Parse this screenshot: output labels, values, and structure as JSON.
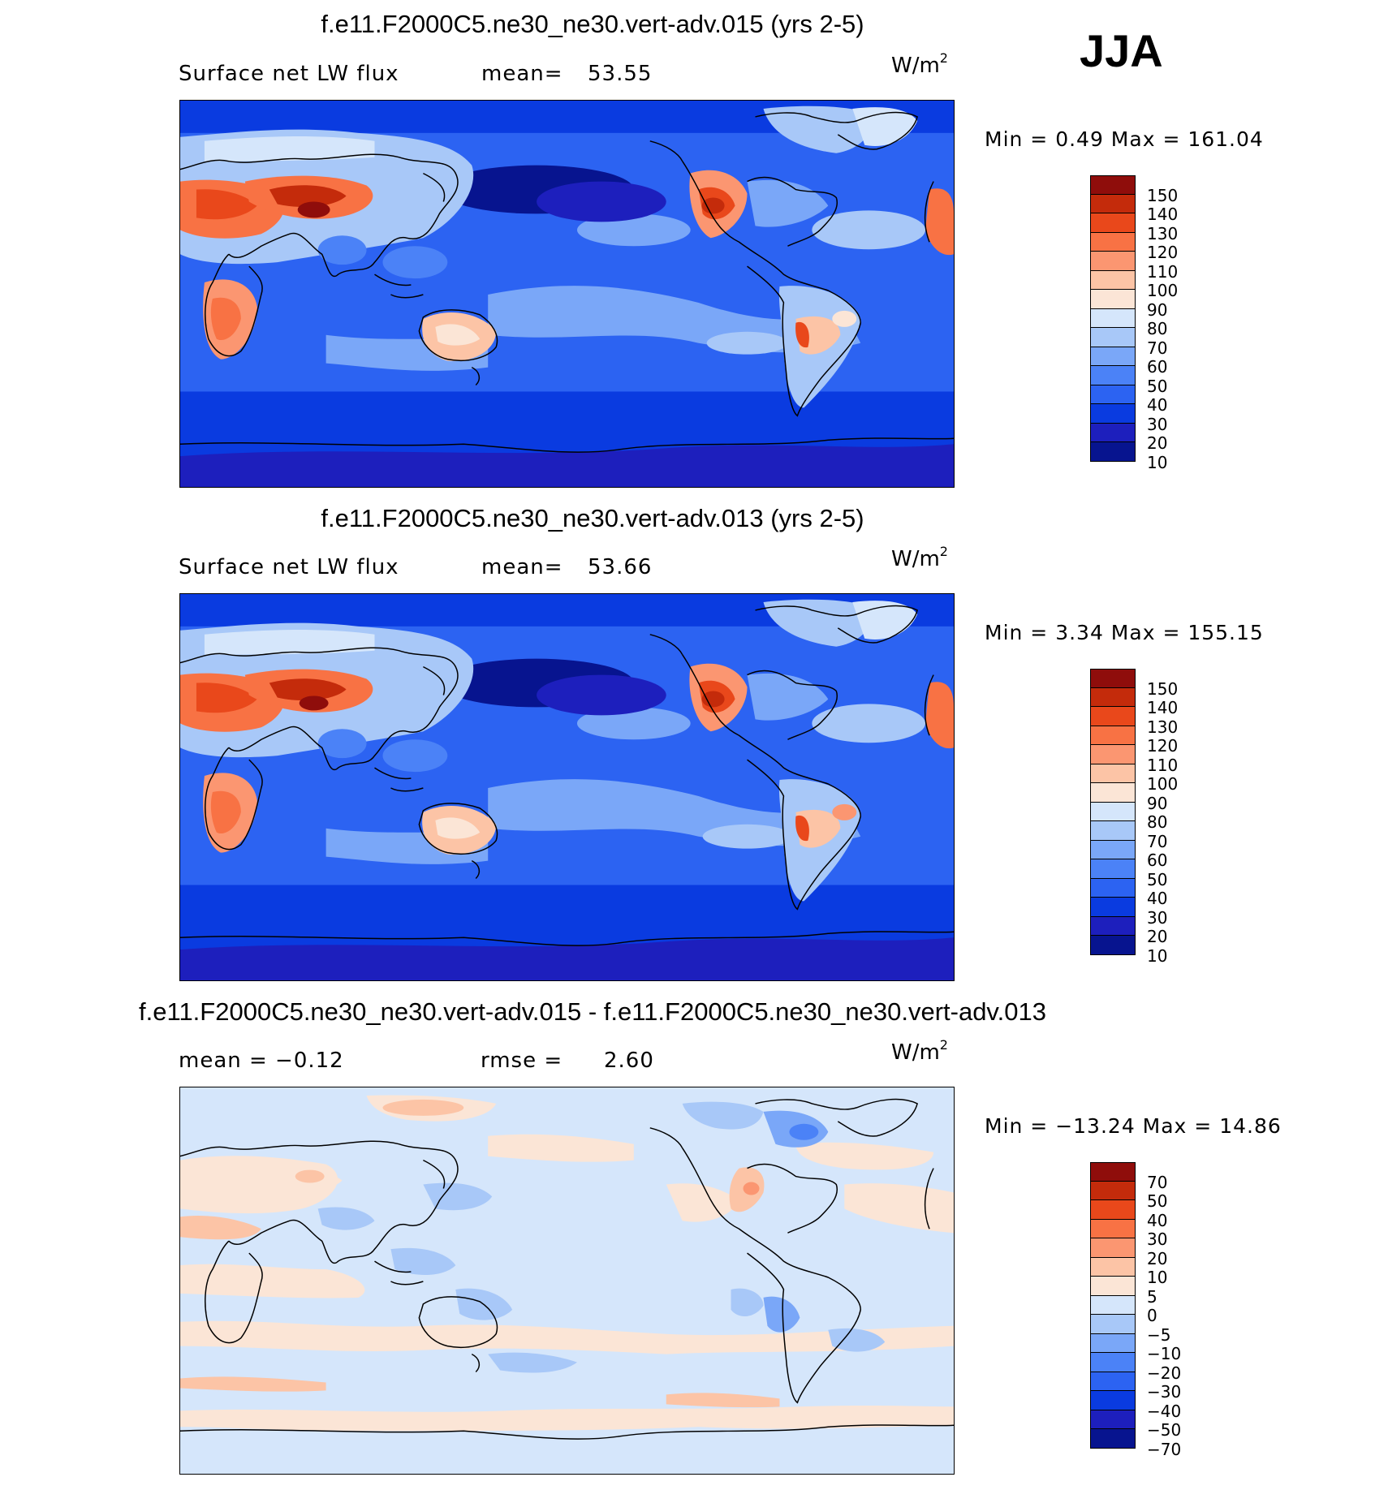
{
  "season": "JJA",
  "panels": [
    {
      "title": "f.e11.F2000C5.ne30_ne30.vert-adv.015 (yrs 2-5)",
      "left_label": "Surface net LW flux",
      "stat_label": "mean=",
      "stat_value": "53.55",
      "units": "W/m",
      "units_sup": "2",
      "minmax": "Min =    0.49  Max =  161.04",
      "colors": [
        "#07148f",
        "#1d1fbd",
        "#0a3be0",
        "#2c63f2",
        "#4b82f7",
        "#7aa7f8",
        "#a8c8f8",
        "#d5e6fb",
        "#fbe5d6",
        "#fcc4a6",
        "#fb9671",
        "#f87244",
        "#e9481b",
        "#c42b0b",
        "#8f0d0b"
      ],
      "levels": [
        "150",
        "140",
        "130",
        "120",
        "110",
        "100",
        "90",
        "80",
        "70",
        "60",
        "50",
        "40",
        "30",
        "20",
        "10"
      ]
    },
    {
      "title": "f.e11.F2000C5.ne30_ne30.vert-adv.013 (yrs 2-5)",
      "left_label": "Surface net LW flux",
      "stat_label": "mean=",
      "stat_value": "53.66",
      "units": "W/m",
      "units_sup": "2",
      "minmax": "Min =    3.34  Max =  155.15",
      "colors": [
        "#07148f",
        "#1d1fbd",
        "#0a3be0",
        "#2c63f2",
        "#4b82f7",
        "#7aa7f8",
        "#a8c8f8",
        "#d5e6fb",
        "#fbe5d6",
        "#fcc4a6",
        "#fb9671",
        "#f87244",
        "#e9481b",
        "#c42b0b",
        "#8f0d0b"
      ],
      "levels": [
        "150",
        "140",
        "130",
        "120",
        "110",
        "100",
        "90",
        "80",
        "70",
        "60",
        "50",
        "40",
        "30",
        "20",
        "10"
      ]
    },
    {
      "title": "f.e11.F2000C5.ne30_ne30.vert-adv.015 - f.e11.F2000C5.ne30_ne30.vert-adv.013",
      "left_label": "mean =   −0.12",
      "stat_label": "rmse =",
      "stat_value": "2.60",
      "units": "W/m",
      "units_sup": "2",
      "minmax": "Min = −13.24  Max =   14.86",
      "colors": [
        "#07148f",
        "#1d1fbd",
        "#0a3be0",
        "#2c63f2",
        "#4b82f7",
        "#7aa7f8",
        "#a8c8f8",
        "#d5e6fb",
        "#fbe5d6",
        "#fcc4a6",
        "#fb9671",
        "#f87244",
        "#e9481b",
        "#c42b0b",
        "#8f0d0b"
      ],
      "levels": [
        "70",
        "50",
        "40",
        "30",
        "20",
        "10",
        "5",
        "0",
        "−5",
        "−10",
        "−20",
        "−30",
        "−40",
        "−50",
        "−70"
      ]
    }
  ]
}
